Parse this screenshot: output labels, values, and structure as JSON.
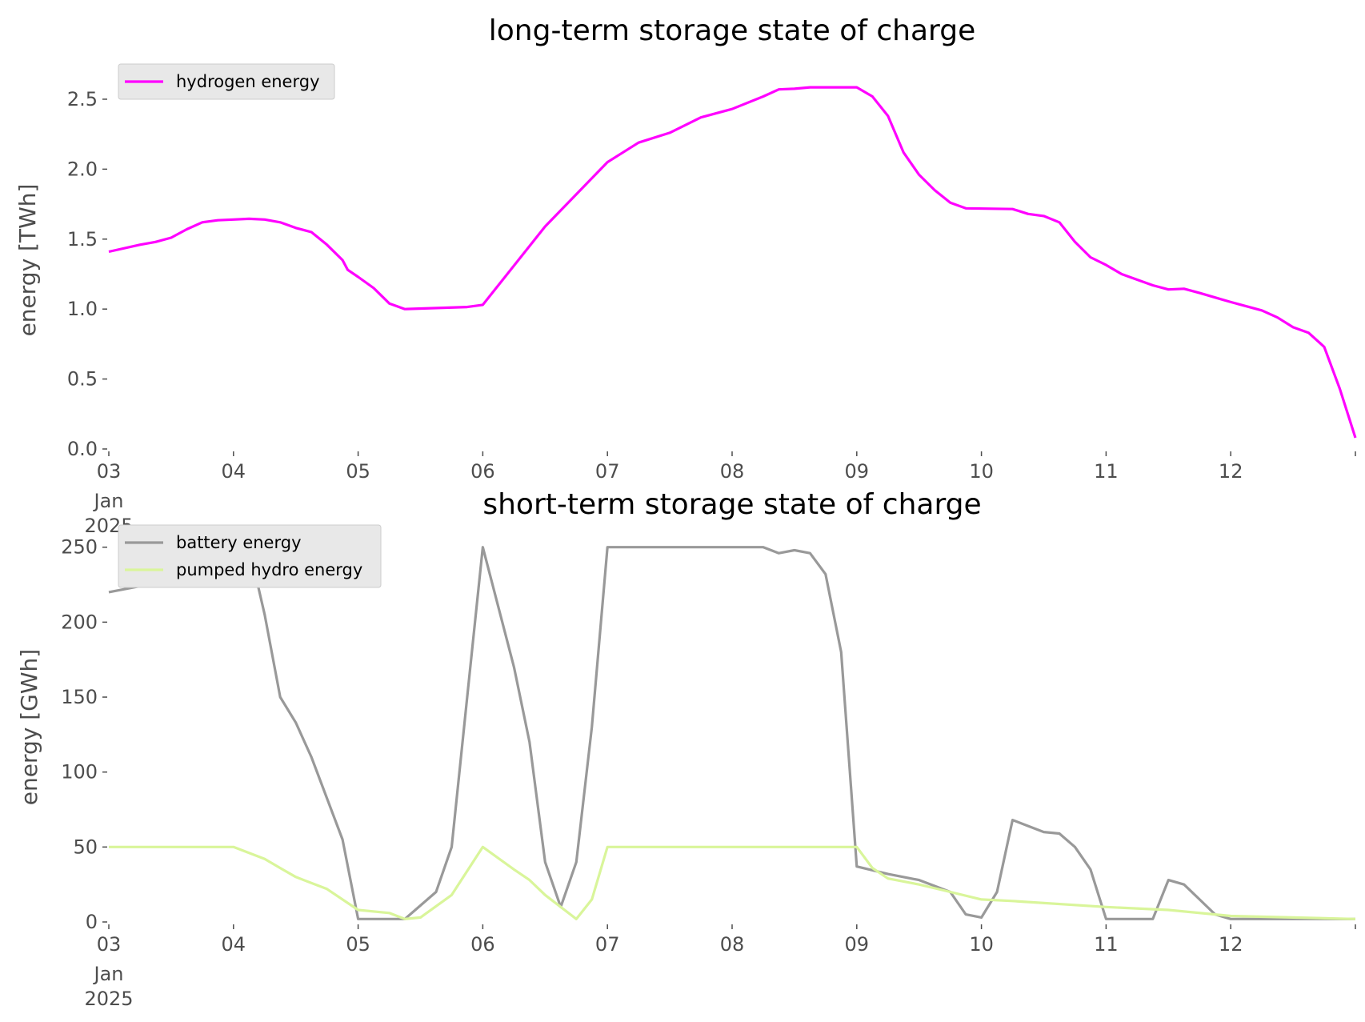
{
  "chart_data": [
    {
      "type": "line",
      "title": "long-term storage state of charge",
      "ylabel": "energy [TWh]",
      "xlabel": "",
      "x_ticks": [
        "03",
        "04",
        "05",
        "06",
        "07",
        "08",
        "09",
        "10",
        "11",
        "12"
      ],
      "x_tick_sublabels": [
        "Jan",
        "2025"
      ],
      "x_range": [
        "2025-01-03",
        "2025-01-13"
      ],
      "ylim": [
        0,
        2.7
      ],
      "y_ticks": [
        "0.0",
        "0.5",
        "1.0",
        "1.5",
        "2.0",
        "2.5"
      ],
      "grid": false,
      "legend_position": "top-left",
      "series": [
        {
          "name": "hydrogen energy",
          "color": "#ff00ff",
          "points": [
            [
              "2025-01-03 00:00",
              1.41
            ],
            [
              "2025-01-03 06:00",
              1.46
            ],
            [
              "2025-01-03 09:00",
              1.48
            ],
            [
              "2025-01-03 12:00",
              1.51
            ],
            [
              "2025-01-03 15:00",
              1.57
            ],
            [
              "2025-01-03 18:00",
              1.62
            ],
            [
              "2025-01-03 21:00",
              1.635
            ],
            [
              "2025-01-04 00:00",
              1.64
            ],
            [
              "2025-01-04 03:00",
              1.645
            ],
            [
              "2025-01-04 06:00",
              1.64
            ],
            [
              "2025-01-04 09:00",
              1.62
            ],
            [
              "2025-01-04 12:00",
              1.58
            ],
            [
              "2025-01-04 15:00",
              1.55
            ],
            [
              "2025-01-04 18:00",
              1.46
            ],
            [
              "2025-01-04 21:00",
              1.35
            ],
            [
              "2025-01-04 22:00",
              1.28
            ],
            [
              "2025-01-05 00:00",
              1.23
            ],
            [
              "2025-01-05 03:00",
              1.15
            ],
            [
              "2025-01-05 06:00",
              1.04
            ],
            [
              "2025-01-05 09:00",
              1.0
            ],
            [
              "2025-01-05 21:00",
              1.015
            ],
            [
              "2025-01-06 00:00",
              1.03
            ],
            [
              "2025-01-06 12:00",
              1.59
            ],
            [
              "2025-01-07 00:00",
              2.05
            ],
            [
              "2025-01-07 06:00",
              2.19
            ],
            [
              "2025-01-07 12:00",
              2.26
            ],
            [
              "2025-01-07 18:00",
              2.37
            ],
            [
              "2025-01-08 00:00",
              2.43
            ],
            [
              "2025-01-08 06:00",
              2.52
            ],
            [
              "2025-01-08 09:00",
              2.57
            ],
            [
              "2025-01-08 12:00",
              2.575
            ],
            [
              "2025-01-08 15:00",
              2.585
            ],
            [
              "2025-01-09 00:00",
              2.585
            ],
            [
              "2025-01-09 03:00",
              2.52
            ],
            [
              "2025-01-09 06:00",
              2.38
            ],
            [
              "2025-01-09 09:00",
              2.12
            ],
            [
              "2025-01-09 12:00",
              1.96
            ],
            [
              "2025-01-09 15:00",
              1.85
            ],
            [
              "2025-01-09 18:00",
              1.76
            ],
            [
              "2025-01-09 21:00",
              1.72
            ],
            [
              "2025-01-10 06:00",
              1.715
            ],
            [
              "2025-01-10 09:00",
              1.68
            ],
            [
              "2025-01-10 12:00",
              1.665
            ],
            [
              "2025-01-10 15:00",
              1.62
            ],
            [
              "2025-01-10 18:00",
              1.48
            ],
            [
              "2025-01-10 21:00",
              1.37
            ],
            [
              "2025-01-11 00:00",
              1.315
            ],
            [
              "2025-01-11 03:00",
              1.25
            ],
            [
              "2025-01-11 06:00",
              1.21
            ],
            [
              "2025-01-11 09:00",
              1.17
            ],
            [
              "2025-01-11 12:00",
              1.14
            ],
            [
              "2025-01-11 15:00",
              1.145
            ],
            [
              "2025-01-11 18:00",
              1.115
            ],
            [
              "2025-01-12 00:00",
              1.05
            ],
            [
              "2025-01-12 06:00",
              0.99
            ],
            [
              "2025-01-12 09:00",
              0.94
            ],
            [
              "2025-01-12 12:00",
              0.87
            ],
            [
              "2025-01-12 15:00",
              0.83
            ],
            [
              "2025-01-12 18:00",
              0.73
            ],
            [
              "2025-01-12 21:00",
              0.43
            ],
            [
              "2025-01-13 00:00",
              0.08
            ]
          ]
        }
      ]
    },
    {
      "type": "line",
      "title": "short-term storage state of charge",
      "ylabel": "energy [GWh]",
      "xlabel": "",
      "x_ticks": [
        "03",
        "04",
        "05",
        "06",
        "07",
        "08",
        "09",
        "10",
        "11",
        "12"
      ],
      "x_tick_sublabels": [
        "Jan",
        "2025"
      ],
      "x_range": [
        "2025-01-03",
        "2025-01-13"
      ],
      "ylim": [
        0,
        260
      ],
      "y_ticks": [
        "0",
        "50",
        "100",
        "150",
        "200",
        "250"
      ],
      "grid": false,
      "legend_position": "top-left",
      "series": [
        {
          "name": "battery energy",
          "color": "#999999",
          "points": [
            [
              "2025-01-03 00:00",
              220
            ],
            [
              "2025-01-03 06:00",
              224
            ],
            [
              "2025-01-03 12:00",
              228
            ],
            [
              "2025-01-03 18:00",
              232
            ],
            [
              "2025-01-04 00:00",
              248
            ],
            [
              "2025-01-04 03:00",
              250
            ],
            [
              "2025-01-04 06:00",
              205
            ],
            [
              "2025-01-04 09:00",
              150
            ],
            [
              "2025-01-04 12:00",
              133
            ],
            [
              "2025-01-04 15:00",
              110
            ],
            [
              "2025-01-04 21:00",
              55
            ],
            [
              "2025-01-05 00:00",
              2
            ],
            [
              "2025-01-05 09:00",
              2
            ],
            [
              "2025-01-05 15:00",
              20
            ],
            [
              "2025-01-05 18:00",
              50
            ],
            [
              "2025-01-05 21:00",
              150
            ],
            [
              "2025-01-06 00:00",
              250
            ],
            [
              "2025-01-06 06:00",
              170
            ],
            [
              "2025-01-06 09:00",
              120
            ],
            [
              "2025-01-06 12:00",
              40
            ],
            [
              "2025-01-06 15:00",
              10
            ],
            [
              "2025-01-06 18:00",
              40
            ],
            [
              "2025-01-06 21:00",
              130
            ],
            [
              "2025-01-07 00:00",
              250
            ],
            [
              "2025-01-08 06:00",
              250
            ],
            [
              "2025-01-08 09:00",
              246
            ],
            [
              "2025-01-08 12:00",
              248
            ],
            [
              "2025-01-08 15:00",
              246
            ],
            [
              "2025-01-08 18:00",
              232
            ],
            [
              "2025-01-08 21:00",
              180
            ],
            [
              "2025-01-09 00:00",
              37
            ],
            [
              "2025-01-09 06:00",
              32
            ],
            [
              "2025-01-09 12:00",
              28
            ],
            [
              "2025-01-09 18:00",
              20
            ],
            [
              "2025-01-09 21:00",
              5
            ],
            [
              "2025-01-10 00:00",
              3
            ],
            [
              "2025-01-10 03:00",
              20
            ],
            [
              "2025-01-10 06:00",
              68
            ],
            [
              "2025-01-10 09:00",
              64
            ],
            [
              "2025-01-10 12:00",
              60
            ],
            [
              "2025-01-10 15:00",
              59
            ],
            [
              "2025-01-10 18:00",
              50
            ],
            [
              "2025-01-10 21:00",
              35
            ],
            [
              "2025-01-11 00:00",
              2
            ],
            [
              "2025-01-11 09:00",
              2
            ],
            [
              "2025-01-11 12:00",
              28
            ],
            [
              "2025-01-11 15:00",
              25
            ],
            [
              "2025-01-11 18:00",
              15
            ],
            [
              "2025-01-11 21:00",
              5
            ],
            [
              "2025-01-12 00:00",
              2
            ],
            [
              "2025-01-13 00:00",
              2
            ]
          ]
        },
        {
          "name": "pumped hydro energy",
          "color": "#d9f59a",
          "points": [
            [
              "2025-01-03 00:00",
              50
            ],
            [
              "2025-01-04 00:00",
              50
            ],
            [
              "2025-01-04 06:00",
              42
            ],
            [
              "2025-01-04 09:00",
              36
            ],
            [
              "2025-01-04 12:00",
              30
            ],
            [
              "2025-01-04 18:00",
              22
            ],
            [
              "2025-01-05 00:00",
              8
            ],
            [
              "2025-01-05 06:00",
              6
            ],
            [
              "2025-01-05 09:00",
              2
            ],
            [
              "2025-01-05 12:00",
              3
            ],
            [
              "2025-01-05 18:00",
              18
            ],
            [
              "2025-01-06 00:00",
              50
            ],
            [
              "2025-01-06 06:00",
              35
            ],
            [
              "2025-01-06 09:00",
              28
            ],
            [
              "2025-01-06 12:00",
              18
            ],
            [
              "2025-01-06 18:00",
              2
            ],
            [
              "2025-01-06 21:00",
              15
            ],
            [
              "2025-01-07 00:00",
              50
            ],
            [
              "2025-01-09 00:00",
              50
            ],
            [
              "2025-01-09 03:00",
              36
            ],
            [
              "2025-01-09 06:00",
              29
            ],
            [
              "2025-01-09 12:00",
              25
            ],
            [
              "2025-01-09 18:00",
              20
            ],
            [
              "2025-01-10 00:00",
              15
            ],
            [
              "2025-01-10 06:00",
              14
            ],
            [
              "2025-01-11 00:00",
              10
            ],
            [
              "2025-01-11 12:00",
              8
            ],
            [
              "2025-01-12 00:00",
              4
            ],
            [
              "2025-01-13 00:00",
              2
            ]
          ]
        }
      ]
    }
  ]
}
